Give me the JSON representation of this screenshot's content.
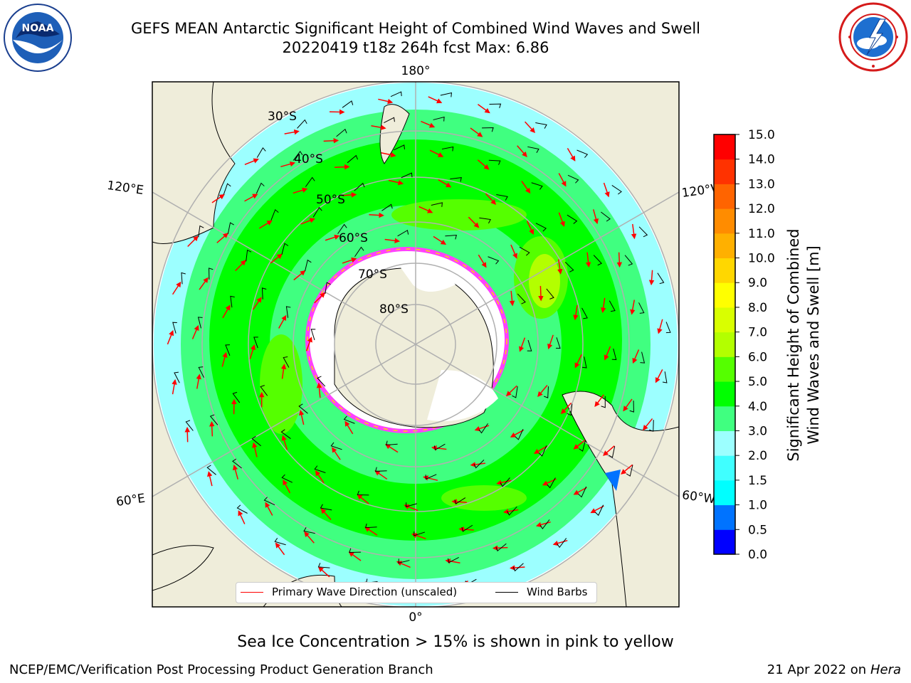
{
  "title": {
    "line1": "GEFS MEAN Antarctic Significant Height of Combined Wind Waves and Swell",
    "line2": "20220419 t18z 264h fcst   Max: 6.86"
  },
  "logos": {
    "left": {
      "name": "NOAA",
      "text": "NOAA"
    },
    "right": {
      "name": "National Weather Service"
    }
  },
  "map": {
    "projection": "south-polar-stereographic",
    "meridian_labels": [
      "180°",
      "0°",
      "120°E",
      "120°W",
      "60°E",
      "60°W"
    ],
    "latitude_labels": [
      "30°S",
      "40°S",
      "50°S",
      "60°S",
      "70°S",
      "80°S"
    ],
    "legend": {
      "wave_label": "Primary Wave Direction (unscaled)",
      "wave_color": "#ff0000",
      "barb_label": "Wind Barbs",
      "barb_color": "#000000"
    },
    "max_value": 6.86
  },
  "colorbar": {
    "label_line1": "Significant Height of Combined",
    "label_line2": "Wind Waves and Swell [m]",
    "ticks": [
      "0.0",
      "0.5",
      "1.0",
      "1.5",
      "2.0",
      "3.0",
      "4.0",
      "5.0",
      "6.0",
      "7.0",
      "8.0",
      "9.0",
      "10.0",
      "11.0",
      "12.0",
      "13.0",
      "14.0",
      "15.0"
    ],
    "colors": [
      "#0000ff",
      "#0073ff",
      "#00ffff",
      "#40ffff",
      "#9cffff",
      "#40ff80",
      "#00ff00",
      "#55ff00",
      "#b3ff00",
      "#d9ff00",
      "#ffff00",
      "#ffd700",
      "#ffb000",
      "#ff8c00",
      "#ff6400",
      "#ff3200",
      "#ff0000"
    ]
  },
  "sea_ice_note": "Sea Ice Concentration > 15% is shown in pink to yellow",
  "footer": {
    "left": "NCEP/EMC/Verification Post Processing Product Generation Branch",
    "right_prefix": "21 Apr 2022 on ",
    "right_machine": "Hera"
  }
}
